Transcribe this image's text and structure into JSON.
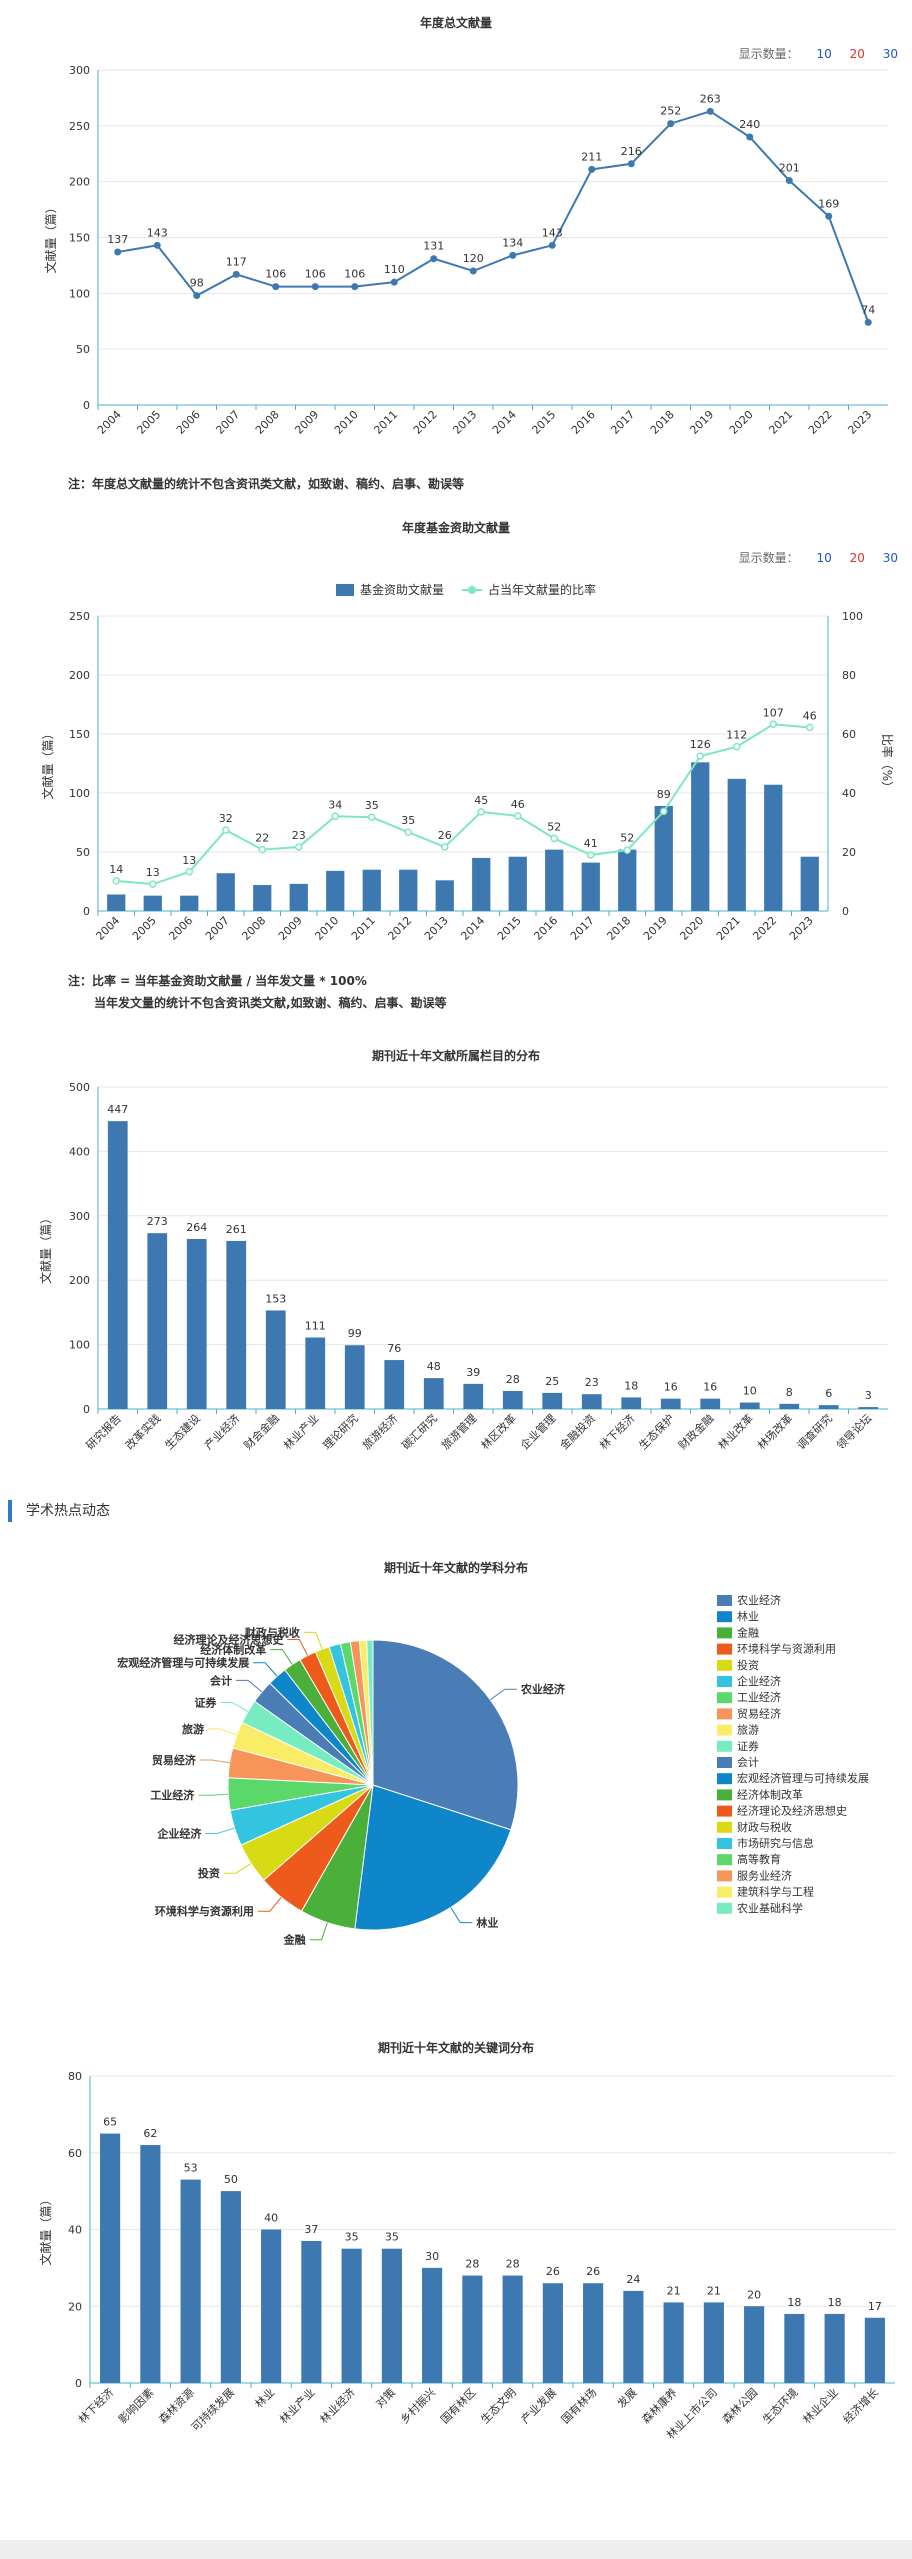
{
  "count_selector": {
    "label": "显示数量：",
    "options": [
      "10",
      "20",
      "30"
    ],
    "colors": [
      "#2255cc",
      "#e03030",
      "#2255cc"
    ]
  },
  "notes": {
    "chart1": "注：年度总文献量的统计不包含资讯类文献，如致谢、稿约、启事、勘误等",
    "chart2_line1": "注：比率 = 当年基金资助文献量 / 当年发文量 * 100%",
    "chart2_line2": "当年发文量的统计不包含资讯类文献,如致谢、稿约、启事、勘误等"
  },
  "section_header": "学术热点动态",
  "chart_data": [
    {
      "type": "line",
      "title": "年度总文献量",
      "ylabel": "文献量（篇）",
      "ylim": [
        0,
        300
      ],
      "yticks": [
        0,
        50,
        100,
        150,
        200,
        250,
        300
      ],
      "categories": [
        "2004",
        "2005",
        "2006",
        "2007",
        "2008",
        "2009",
        "2010",
        "2011",
        "2012",
        "2013",
        "2014",
        "2015",
        "2016",
        "2017",
        "2018",
        "2019",
        "2020",
        "2021",
        "2022",
        "2023"
      ],
      "values": [
        137,
        143,
        98,
        117,
        106,
        106,
        106,
        110,
        131,
        120,
        134,
        143,
        211,
        216,
        252,
        263,
        240,
        201,
        169,
        74
      ],
      "color": "#3d78b0"
    },
    {
      "type": "bar",
      "title": "年度基金资助文献量",
      "ylabel": "文献量（篇）",
      "y2label": "比率（%）",
      "ylim": [
        0,
        250
      ],
      "yticks": [
        0,
        50,
        100,
        150,
        200,
        250
      ],
      "y2lim": [
        0,
        100
      ],
      "y2ticks": [
        0,
        20,
        40,
        60,
        80,
        100
      ],
      "legend": [
        "基金资助文献量",
        "占当年文献量的比率"
      ],
      "categories": [
        "2004",
        "2005",
        "2006",
        "2007",
        "2008",
        "2009",
        "2010",
        "2011",
        "2012",
        "2013",
        "2014",
        "2015",
        "2016",
        "2017",
        "2018",
        "2019",
        "2020",
        "2021",
        "2022",
        "2023"
      ],
      "values": [
        14,
        13,
        13,
        32,
        22,
        23,
        34,
        35,
        35,
        26,
        45,
        46,
        52,
        41,
        52,
        89,
        126,
        112,
        107,
        46
      ],
      "ratios": [
        10.2,
        9.1,
        13.3,
        27.4,
        20.8,
        21.7,
        32.1,
        31.8,
        26.7,
        21.7,
        33.6,
        32.2,
        24.6,
        19.0,
        20.6,
        33.8,
        52.5,
        55.7,
        63.3,
        62.2
      ],
      "bar_color": "#3d78b0",
      "line_color": "#7de8c0"
    },
    {
      "type": "bar",
      "title": "期刊近十年文献所属栏目的分布",
      "ylabel": "文献量（篇）",
      "ylim": [
        0,
        500
      ],
      "yticks": [
        0,
        100,
        200,
        300,
        400,
        500
      ],
      "categories": [
        "研究报告",
        "改革实践",
        "生态建设",
        "产业经济",
        "财会金融",
        "林业产业",
        "理论研究",
        "旅游经济",
        "碳汇研究",
        "旅游管理",
        "林区改革",
        "企业管理",
        "金融投资",
        "林下经济",
        "生态保护",
        "财政金融",
        "林业改革",
        "林场改革",
        "调查研究",
        "领导论坛"
      ],
      "values": [
        447,
        273,
        264,
        261,
        153,
        111,
        99,
        76,
        48,
        39,
        28,
        25,
        23,
        18,
        16,
        16,
        10,
        8,
        6,
        3
      ],
      "color": "#3d78b0"
    },
    {
      "type": "pie",
      "title": "期刊近十年文献的学科分布",
      "legend": [
        "农业经济",
        "林业",
        "金融",
        "环境科学与资源利用",
        "投资",
        "企业经济",
        "工业经济",
        "贸易经济",
        "旅游",
        "证券",
        "会计",
        "宏观经济管理与可持续发展",
        "经济体制改革",
        "经济理论及经济思想史",
        "财政与税收",
        "市场研究与信息",
        "高等教育",
        "服务业经济",
        "建筑科学与工程",
        "农业基础科学"
      ],
      "values": [
        30.0,
        22.0,
        6.2,
        5.4,
        4.6,
        4.0,
        3.6,
        3.3,
        3.0,
        2.7,
        2.6,
        2.2,
        2.0,
        1.9,
        1.6,
        1.3,
        1.1,
        1.0,
        0.8,
        0.7
      ],
      "colors": [
        "#4a7db5",
        "#0e86c9",
        "#4ab03a",
        "#ee5a1c",
        "#d8db14",
        "#33c5e0",
        "#5bd86a",
        "#f6945a",
        "#f9ec66",
        "#77ecc0",
        "#4a7db5",
        "#0e86c9",
        "#4ab03a",
        "#ee5a1c",
        "#d8db14",
        "#33c5e0",
        "#5bd86a",
        "#f6945a",
        "#f9ec66",
        "#77ecc0"
      ],
      "labeled": [
        "农业经济",
        "林业",
        "金融",
        "环境科学与资源利用",
        "投资",
        "企业经济",
        "工业经济",
        "贸易经济",
        "旅游",
        "证券",
        "会计",
        "宏观经济管理与可持续发展",
        "经济体制改革",
        "经济理论及经济思想史",
        "财政与税收"
      ]
    },
    {
      "type": "bar",
      "title": "期刊近十年文献的关键词分布",
      "ylabel": "文献量（篇）",
      "ylim": [
        0,
        80
      ],
      "yticks": [
        0,
        20,
        40,
        60,
        80
      ],
      "categories": [
        "林下经济",
        "影响因素",
        "森林资源",
        "可持续发展",
        "林业",
        "林业产业",
        "林业经济",
        "对策",
        "乡村振兴",
        "国有林区",
        "生态文明",
        "产业发展",
        "国有林场",
        "发展",
        "森林康养",
        "林业上市公司",
        "森林公园",
        "生态环境",
        "林业企业",
        "经济增长"
      ],
      "values": [
        65,
        62,
        53,
        50,
        40,
        37,
        35,
        35,
        30,
        28,
        28,
        26,
        26,
        24,
        21,
        21,
        20,
        18,
        18,
        17
      ],
      "color": "#3d78b0"
    }
  ]
}
